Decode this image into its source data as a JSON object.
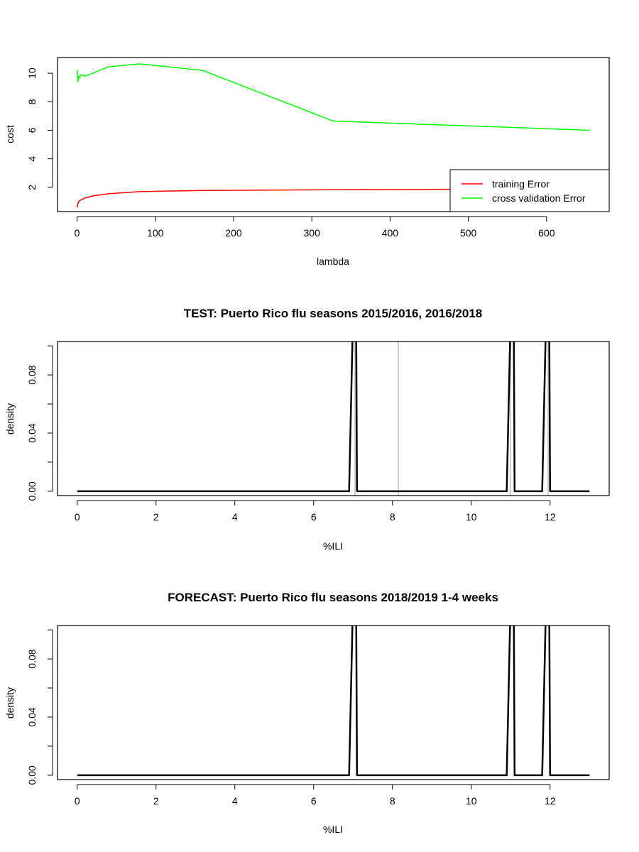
{
  "chart_data": [
    {
      "type": "line",
      "title": "",
      "xlabel": "lambda",
      "ylabel": "cost",
      "xlim": [
        -25,
        680
      ],
      "ylim": [
        0.3,
        11.1
      ],
      "xticks": [
        0,
        100,
        200,
        300,
        400,
        500,
        600
      ],
      "yticks": [
        2,
        4,
        6,
        8,
        10
      ],
      "grid": false,
      "legend": {
        "position": "bottom-right",
        "entries": [
          "training Error",
          "cross validation Error"
        ]
      },
      "series": [
        {
          "name": "training Error",
          "color": "#ff0000",
          "x": [
            0,
            1,
            2,
            3,
            5,
            10,
            20,
            40,
            80,
            160,
            320,
            480,
            655
          ],
          "y": [
            0.6,
            0.85,
            1.0,
            1.05,
            1.12,
            1.25,
            1.4,
            1.55,
            1.7,
            1.78,
            1.83,
            1.86,
            1.89
          ]
        },
        {
          "name": "cross validation Error",
          "color": "#00ff00",
          "x": [
            0,
            1,
            2,
            3,
            5,
            10,
            20,
            40,
            80,
            160,
            327,
            655
          ],
          "y": [
            10.2,
            9.4,
            9.8,
            9.7,
            9.9,
            9.8,
            10.0,
            10.45,
            10.65,
            10.2,
            6.65,
            6.0
          ]
        }
      ]
    },
    {
      "type": "line",
      "title": "TEST: Puerto Rico  flu seasons 2015/2016, 2016/2018",
      "xlabel": "%ILI",
      "ylabel": "density",
      "xlim": [
        -0.5,
        13.5
      ],
      "ylim": [
        -0.003,
        0.103
      ],
      "xticks": [
        0,
        2,
        4,
        6,
        8,
        10,
        12
      ],
      "yticks": [
        0.0,
        0.02,
        0.04,
        0.06,
        0.08,
        0.1
      ],
      "ytick_labels": [
        "0.00",
        "",
        "0.04",
        "",
        "0.08",
        ""
      ],
      "grid": false,
      "vlines": {
        "color": "#bebebe",
        "x": [
          7.05,
          8.15,
          11.0,
          11.95
        ]
      },
      "series": [
        {
          "color": "#000000",
          "x": [
            0,
            6.9,
            6.99,
            7.0,
            7.08,
            7.1,
            10.9,
            10.99,
            11.0,
            11.08,
            11.1,
            11.8,
            11.89,
            11.9,
            11.98,
            12.0,
            13.0
          ],
          "y": [
            0,
            0,
            0.11,
            0.11,
            0.11,
            0,
            0,
            0.11,
            0.11,
            0.11,
            0,
            0,
            0.11,
            0.11,
            0.11,
            0,
            0
          ]
        }
      ]
    },
    {
      "type": "line",
      "title": "FORECAST: Puerto Rico flu seasons 2018/2019 1-4 weeks",
      "xlabel": "%ILI",
      "ylabel": "density",
      "xlim": [
        -0.5,
        13.5
      ],
      "ylim": [
        -0.003,
        0.103
      ],
      "xticks": [
        0,
        2,
        4,
        6,
        8,
        10,
        12
      ],
      "yticks": [
        0.0,
        0.02,
        0.04,
        0.06,
        0.08,
        0.1
      ],
      "ytick_labels": [
        "0.00",
        "",
        "0.04",
        "",
        "0.08",
        ""
      ],
      "grid": false,
      "series": [
        {
          "color": "#000000",
          "x": [
            0,
            6.9,
            6.99,
            7.0,
            7.08,
            7.1,
            10.9,
            10.99,
            11.0,
            11.08,
            11.1,
            11.8,
            11.89,
            11.9,
            11.98,
            12.0,
            13.0
          ],
          "y": [
            0,
            0,
            0.11,
            0.11,
            0.11,
            0,
            0,
            0.11,
            0.11,
            0.11,
            0,
            0,
            0.11,
            0.11,
            0.11,
            0,
            0
          ]
        }
      ]
    }
  ]
}
